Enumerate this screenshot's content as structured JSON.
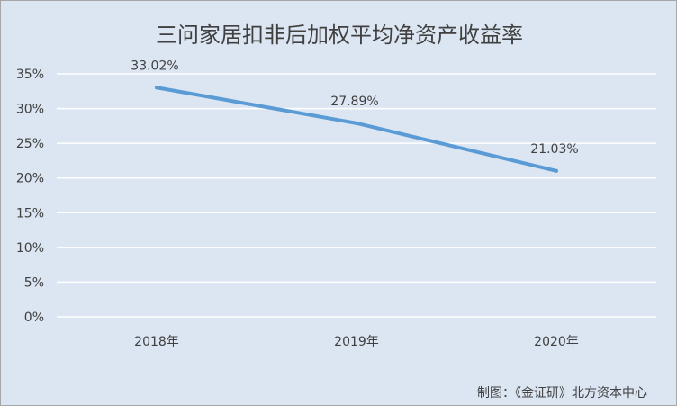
{
  "chart_data": {
    "type": "line",
    "title": "三问家居扣非后加权平均净资产收益率",
    "categories": [
      "2018年",
      "2019年",
      "2020年"
    ],
    "series": [
      {
        "values": [
          33.02,
          27.89,
          21.03
        ],
        "data_labels": [
          "33.02%",
          "27.89%",
          "21.03%"
        ],
        "color": "#5b9bd5"
      }
    ],
    "y_ticks": [
      "0%",
      "5%",
      "10%",
      "15%",
      "20%",
      "25%",
      "30%",
      "35%"
    ],
    "ylim": [
      0,
      35
    ],
    "grid": true,
    "legend": "none"
  },
  "footer": {
    "source": "制图：《金证研》北方资本中心"
  },
  "colors": {
    "background": "#dce6f2",
    "gridline": "#ffffff",
    "text": "#404040"
  }
}
